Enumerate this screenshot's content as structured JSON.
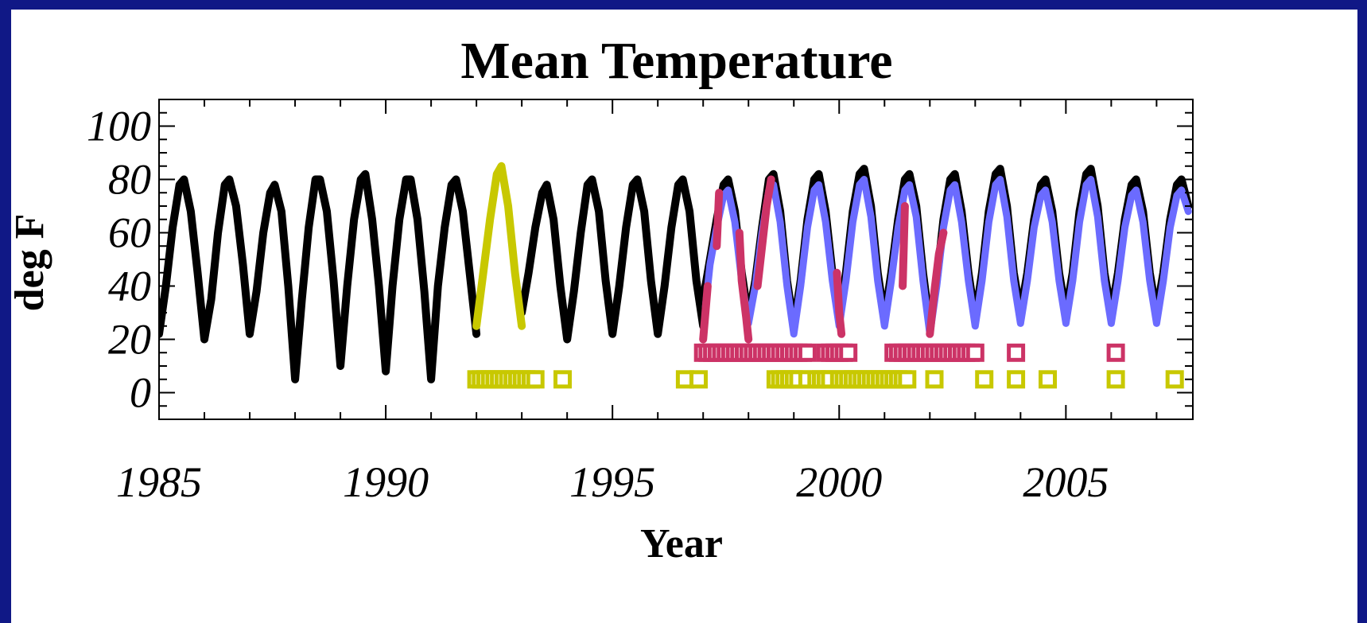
{
  "chart_data": {
    "type": "line",
    "title": "Mean Temperature",
    "xlabel": "Year",
    "ylabel": "deg F",
    "xlim": [
      1985,
      2007.8
    ],
    "ylim": [
      -10,
      110
    ],
    "x_ticks": [
      1985,
      1990,
      1995,
      2000,
      2005
    ],
    "y_ticks": [
      0,
      20,
      40,
      60,
      80,
      100
    ],
    "grid": false,
    "legend": "none",
    "colors": {
      "black_series": "#000000",
      "yellow_series": "#c8c800",
      "red_series": "#cc3366",
      "blue_series": "#6b6bff"
    },
    "series": [
      {
        "color": "#000000",
        "segments": [
          {
            "x": [
              1985.0,
              1985.15,
              1985.3,
              1985.45,
              1985.55,
              1985.7,
              1985.85,
              1986.0,
              1986.15,
              1986.3,
              1986.45,
              1986.55,
              1986.7,
              1986.85,
              1987.0,
              1987.15,
              1987.3,
              1987.45,
              1987.55,
              1987.7,
              1987.85,
              1988.0,
              1988.15,
              1988.3,
              1988.45,
              1988.55,
              1988.7,
              1988.85,
              1989.0,
              1989.15,
              1989.3,
              1989.45,
              1989.55,
              1989.7,
              1989.85,
              1990.0,
              1990.15,
              1990.3,
              1990.45,
              1990.55,
              1990.7,
              1990.85,
              1991.0,
              1991.15,
              1991.3,
              1991.45,
              1991.55,
              1991.7,
              1991.85,
              1992.0
            ],
            "y": [
              22,
              40,
              62,
              78,
              80,
              68,
              45,
              20,
              35,
              60,
              78,
              80,
              70,
              48,
              22,
              38,
              60,
              75,
              78,
              68,
              40,
              5,
              35,
              62,
              80,
              80,
              68,
              42,
              10,
              40,
              65,
              80,
              82,
              65,
              40,
              8,
              40,
              65,
              80,
              80,
              65,
              38,
              5,
              40,
              62,
              78,
              80,
              68,
              45,
              22
            ]
          },
          {
            "x": [
              1993.0,
              1993.15,
              1993.3,
              1993.45,
              1993.55,
              1993.7,
              1993.85,
              1994.0,
              1994.15,
              1994.3,
              1994.45,
              1994.55,
              1994.7,
              1994.85,
              1995.0,
              1995.15,
              1995.3,
              1995.45,
              1995.55,
              1995.7,
              1995.85,
              1996.0,
              1996.15,
              1996.3,
              1996.45,
              1996.55,
              1996.7,
              1996.85,
              1997.0
            ],
            "y": [
              30,
              45,
              62,
              75,
              78,
              65,
              40,
              20,
              38,
              60,
              78,
              80,
              68,
              42,
              22,
              40,
              62,
              78,
              80,
              68,
              42,
              22,
              40,
              62,
              78,
              80,
              68,
              42,
              25
            ]
          },
          {
            "x": [
              1997.0,
              1997.15,
              1997.3,
              1997.45,
              1997.55,
              1997.7,
              1997.85,
              1998.0,
              1998.15,
              1998.3,
              1998.45,
              1998.55,
              1998.7,
              1998.85,
              1999.0,
              1999.15,
              1999.3,
              1999.45,
              1999.55,
              1999.7,
              1999.85,
              2000.0,
              2000.15,
              2000.3,
              2000.45,
              2000.55,
              2000.7,
              2000.85,
              2001.0,
              2001.15,
              2001.3,
              2001.45,
              2001.55,
              2001.7,
              2001.85,
              2002.0,
              2002.15,
              2002.3,
              2002.45,
              2002.55,
              2002.7,
              2002.85,
              2003.0,
              2003.15,
              2003.3,
              2003.45,
              2003.55,
              2003.7,
              2003.85,
              2004.0,
              2004.15,
              2004.3,
              2004.45,
              2004.55,
              2004.7,
              2004.85,
              2005.0,
              2005.15,
              2005.3,
              2005.45,
              2005.55,
              2005.7,
              2005.85,
              2006.0,
              2006.15,
              2006.3,
              2006.45,
              2006.55,
              2006.7,
              2006.85,
              2007.0,
              2007.15,
              2007.3,
              2007.45,
              2007.55,
              2007.7
            ],
            "y": [
              35,
              50,
              65,
              78,
              80,
              68,
              45,
              28,
              42,
              62,
              80,
              82,
              68,
              42,
              25,
              42,
              65,
              80,
              82,
              68,
              45,
              28,
              45,
              68,
              82,
              84,
              70,
              45,
              28,
              45,
              65,
              80,
              82,
              70,
              45,
              25,
              42,
              65,
              80,
              82,
              68,
              45,
              28,
              45,
              68,
              82,
              84,
              70,
              45,
              30,
              45,
              65,
              78,
              80,
              68,
              45,
              30,
              45,
              68,
              82,
              84,
              70,
              45,
              30,
              45,
              65,
              78,
              80,
              68,
              45,
              30,
              45,
              65,
              78,
              80,
              70
            ]
          }
        ]
      },
      {
        "color": "#c8c800",
        "segments": [
          {
            "x": [
              1992.0,
              1992.15,
              1992.3,
              1992.45,
              1992.55,
              1992.7,
              1992.85,
              1993.0
            ],
            "y": [
              25,
              45,
              65,
              82,
              85,
              70,
              45,
              25
            ]
          }
        ]
      },
      {
        "color": "#6b6bff",
        "segments": [
          {
            "x": [
              1997.05,
              1997.15,
              1997.3,
              1997.45,
              1997.55,
              1997.7,
              1997.85,
              1998.0,
              1998.15,
              1998.3,
              1998.45,
              1998.55,
              1998.7,
              1998.85,
              1999.0,
              1999.15,
              1999.3,
              1999.45,
              1999.55,
              1999.7,
              1999.85,
              2000.0,
              2000.15,
              2000.3,
              2000.45,
              2000.55,
              2000.7,
              2000.85,
              2001.0,
              2001.15,
              2001.3,
              2001.45,
              2001.55,
              2001.7,
              2001.85,
              2002.0,
              2002.15,
              2002.3,
              2002.45,
              2002.55,
              2002.7,
              2002.85,
              2003.0,
              2003.15,
              2003.3,
              2003.45,
              2003.55,
              2003.7,
              2003.85,
              2004.0,
              2004.15,
              2004.3,
              2004.45,
              2004.55,
              2004.7,
              2004.85,
              2005.0,
              2005.15,
              2005.3,
              2005.45,
              2005.55,
              2005.7,
              2005.85,
              2006.0,
              2006.15,
              2006.3,
              2006.45,
              2006.55,
              2006.7,
              2006.85,
              2007.0,
              2007.15,
              2007.3,
              2007.45,
              2007.55,
              2007.7
            ],
            "y": [
              32,
              48,
              62,
              74,
              76,
              64,
              42,
              26,
              40,
              60,
              76,
              78,
              64,
              40,
              22,
              40,
              62,
              76,
              78,
              64,
              42,
              25,
              42,
              64,
              78,
              80,
              66,
              42,
              25,
              42,
              62,
              76,
              78,
              66,
              42,
              22,
              40,
              62,
              76,
              78,
              64,
              42,
              25,
              42,
              64,
              78,
              80,
              66,
              42,
              26,
              42,
              62,
              74,
              76,
              64,
              42,
              26,
              42,
              64,
              78,
              80,
              66,
              42,
              26,
              42,
              62,
              74,
              76,
              64,
              42,
              26,
              42,
              62,
              74,
              76,
              68
            ]
          }
        ]
      },
      {
        "color": "#cc3366",
        "segments": [
          {
            "x": [
              1997.0,
              1997.1
            ],
            "y": [
              20,
              40
            ]
          },
          {
            "x": [
              1997.3,
              1997.35
            ],
            "y": [
              55,
              75
            ]
          },
          {
            "x": [
              1997.8,
              1997.85,
              1997.95,
              1998.0
            ],
            "y": [
              60,
              42,
              28,
              20
            ]
          },
          {
            "x": [
              1998.2,
              1998.3,
              1998.4,
              1998.5
            ],
            "y": [
              40,
              55,
              70,
              80
            ]
          },
          {
            "x": [
              1999.95,
              2000.0,
              2000.05
            ],
            "y": [
              45,
              30,
              22
            ]
          },
          {
            "x": [
              2001.4,
              2001.45
            ],
            "y": [
              40,
              70
            ]
          },
          {
            "x": [
              2002.0,
              2002.1,
              2002.2,
              2002.3
            ],
            "y": [
              22,
              38,
              52,
              60
            ]
          }
        ]
      }
    ],
    "markers": [
      {
        "color": "#c8c800",
        "y": 5,
        "x": [
          1992.0,
          1992.1,
          1992.2,
          1992.3,
          1992.4,
          1992.5,
          1992.6,
          1992.7,
          1992.8,
          1992.9,
          1993.0,
          1993.1,
          1993.2,
          1993.3,
          1993.9,
          1996.6,
          1996.9,
          1998.6,
          1998.7,
          1998.8,
          1998.9,
          1999.0,
          1999.1,
          1999.3,
          1999.5,
          1999.6,
          1999.7,
          1999.8,
          2000.0,
          2000.1,
          2000.2,
          2000.3,
          2000.4,
          2000.5,
          2000.6,
          2000.7,
          2000.8,
          2000.9,
          2001.0,
          2001.1,
          2001.2,
          2001.3,
          2001.4,
          2001.5,
          2002.1,
          2003.2,
          2003.9,
          2004.6,
          2006.1,
          2007.4
        ]
      },
      {
        "color": "#cc3366",
        "y": 15,
        "x": [
          1997.0,
          1997.1,
          1997.2,
          1997.3,
          1997.4,
          1997.5,
          1997.6,
          1997.7,
          1997.8,
          1997.9,
          1998.0,
          1998.1,
          1998.2,
          1998.3,
          1998.4,
          1998.5,
          1998.6,
          1998.7,
          1998.8,
          1998.9,
          1999.0,
          1999.1,
          1999.2,
          1999.3,
          1999.7,
          1999.8,
          1999.9,
          2000.0,
          2000.1,
          2000.2,
          2001.2,
          2001.3,
          2001.4,
          2001.5,
          2001.6,
          2001.7,
          2001.8,
          2001.9,
          2002.0,
          2002.1,
          2002.2,
          2002.3,
          2002.4,
          2002.5,
          2002.6,
          2002.7,
          2002.8,
          2002.9,
          2003.0,
          2003.9,
          2006.1
        ]
      }
    ]
  }
}
